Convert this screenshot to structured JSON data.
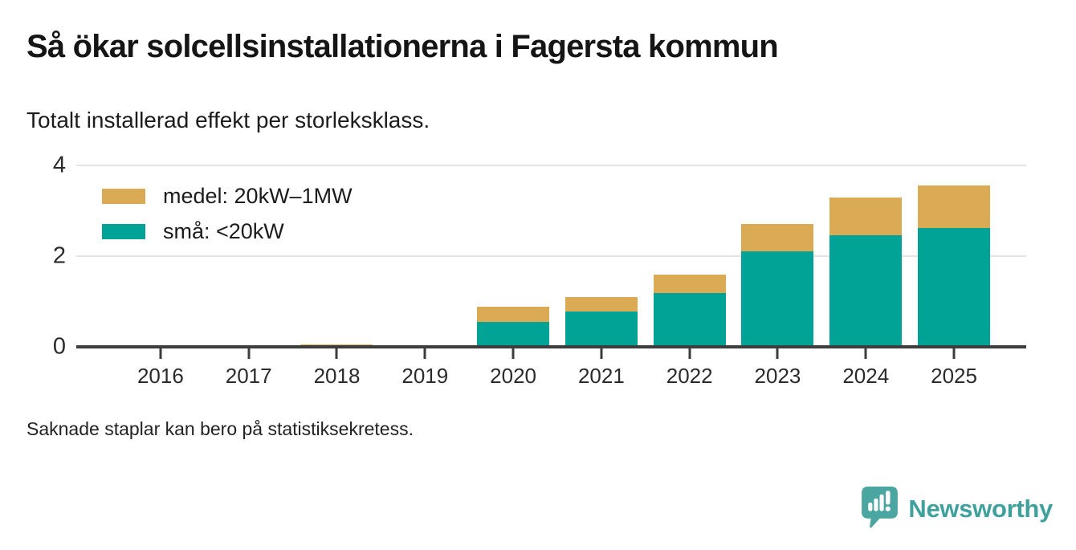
{
  "header": {
    "title": "Så ökar solcellsinstallationerna i Fagersta kommun",
    "subtitle": "Totalt installerad effekt per storleksklass."
  },
  "footnote": "Saknade staplar kan bero på statistiksekretess.",
  "branding": {
    "name": "Newsworthy",
    "logo_icon": "speech-bubble-bar-chart-icon",
    "mark_color": "#4ba6a1",
    "text_color": "#40a19c"
  },
  "colors": {
    "medel": "#dbaa55",
    "sma": "#00a396",
    "axis": "#3d3d3d",
    "grid": "#e3e3e3",
    "text": "#1c1c1c"
  },
  "chart_data": {
    "type": "bar",
    "stacked": true,
    "title": "Så ökar solcellsinstallationerna i Fagersta kommun",
    "subtitle": "Totalt installerad effekt per storleksklass.",
    "categories": [
      "2016",
      "2017",
      "2018",
      "2019",
      "2020",
      "2021",
      "2022",
      "2023",
      "2024",
      "2025"
    ],
    "series": [
      {
        "name": "medel: 20kW–1MW",
        "color": "#dbaa55",
        "values": [
          0,
          0,
          0.05,
          0,
          0.33,
          0.32,
          0.41,
          0.6,
          0.83,
          0.94
        ]
      },
      {
        "name": "små: <20kW",
        "color": "#00a396",
        "values": [
          0,
          0,
          0,
          0,
          0.55,
          0.78,
          1.19,
          2.1,
          2.46,
          2.62
        ]
      }
    ],
    "totals": [
      0,
      0,
      0.05,
      0,
      0.88,
      1.1,
      1.6,
      2.7,
      3.29,
      3.56
    ],
    "ylim": [
      0,
      4
    ],
    "yticks": [
      0,
      2,
      4
    ],
    "xlabel": "",
    "ylabel": "",
    "grid": true,
    "legend_position": "top-left",
    "note": "Saknade staplar kan bero på statistiksekretess."
  }
}
